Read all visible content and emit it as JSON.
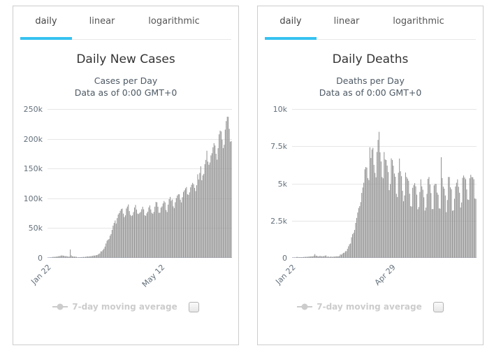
{
  "colors": {
    "accent": "#36c2f0",
    "bar": "#949494",
    "grid": "#e6e6e6",
    "axis_line": "#ccd6eb",
    "title": "#333333",
    "subtitle": "#4d5964",
    "tick_label": "#63707b",
    "tab_text": "#555555",
    "legend_disabled": "#cccccc",
    "panel_border": "#cccccc"
  },
  "charts": [
    {
      "tabs": [
        {
          "label": "daily",
          "active": true
        },
        {
          "label": "linear",
          "active": false
        },
        {
          "label": "logarithmic",
          "active": false
        }
      ],
      "title": "Daily New Cases",
      "subtitle_line1": "Cases per Day",
      "subtitle_line2": "Data as of 0:00 GMT+0",
      "chart_data": {
        "type": "bar",
        "title": "Daily New Cases",
        "subtitle": "Cases per Day — Data as of 0:00 GMT+0",
        "xlabel": "",
        "ylabel": "",
        "ylim": [
          0,
          250000
        ],
        "y_ticks": [
          "0",
          "50k",
          "100k",
          "150k",
          "200k",
          "250k"
        ],
        "x_start": "Jan 22",
        "x_ticks": [
          {
            "label": "Jan 22",
            "day_index": 0
          },
          {
            "label": "May 12",
            "day_index": 111
          }
        ],
        "legend_label": "7-day moving average",
        "legend_enabled": false,
        "grid": true,
        "values": [
          441,
          265,
          659,
          787,
          769,
          1778,
          1482,
          1755,
          2010,
          2127,
          2603,
          2836,
          3239,
          3929,
          3915,
          3721,
          3403,
          2680,
          3019,
          2560,
          2022,
          2110,
          14108,
          4156,
          2538,
          2225,
          2096,
          1998,
          1872,
          648,
          1036,
          896,
          1209,
          1235,
          1387,
          1587,
          1466,
          1788,
          2191,
          2414,
          2202,
          2609,
          2740,
          2960,
          3349,
          3950,
          3795,
          4291,
          4635,
          5281,
          6688,
          7506,
          10913,
          10961,
          13249,
          15406,
          18964,
          24097,
          28764,
          30382,
          31791,
          37193,
          39937,
          46997,
          54204,
          58669,
          62767,
          57671,
          66786,
          72790,
          75113,
          79018,
          81989,
          82708,
          74271,
          68368,
          71420,
          82891,
          86178,
          89657,
          78529,
          72207,
          70226,
          71463,
          76906,
          84590,
          88926,
          81121,
          74394,
          73724,
          75541,
          77129,
          81577,
          85853,
          81497,
          71651,
          70581,
          74826,
          77536,
          84771,
          88099,
          81398,
          75650,
          74113,
          77161,
          85963,
          93983,
          93337,
          85931,
          75745,
          75940,
          84400,
          86374,
          91434,
          95503,
          93081,
          80393,
          76965,
          89454,
          98566,
          102399,
          95917,
          97852,
          86556,
          83657,
          93352,
          100326,
          104752,
          106918,
          106829,
          97630,
          93186,
          101864,
          110750,
          113408,
          116766,
          118947,
          106842,
          105809,
          110021,
          118487,
          122707,
          125871,
          123632,
          117446,
          112095,
          122047,
          140344,
          131659,
          142557,
          153796,
          130327,
          138505,
          141109,
          157297,
          164527,
          179908,
          161630,
          156368,
          160236,
          172015,
          175723,
          185736,
          192612,
          188773,
          174858,
          164905,
          184204,
          207456,
          213742,
          212326,
          198461,
          184380,
          189929,
          215395,
          229782,
          237074,
          236908,
          216621,
          195148,
          196048
        ]
      }
    },
    {
      "tabs": [
        {
          "label": "daily",
          "active": true
        },
        {
          "label": "linear",
          "active": false
        },
        {
          "label": "logarithmic",
          "active": false
        }
      ],
      "title": "Daily Deaths",
      "subtitle_line1": "Deaths per Day",
      "subtitle_line2": "Data as of 0:00 GMT+0",
      "chart_data": {
        "type": "bar",
        "title": "Daily Deaths",
        "subtitle": "Deaths per Day — Data as of 0:00 GMT+0",
        "xlabel": "",
        "ylabel": "",
        "ylim": [
          0,
          10000
        ],
        "y_ticks": [
          "0",
          "2.5k",
          "5k",
          "7.5k",
          "10k"
        ],
        "x_start": "Jan 22",
        "x_ticks": [
          {
            "label": "Jan 22",
            "day_index": 0
          },
          {
            "label": "Apr 29",
            "day_index": 98
          }
        ],
        "legend_label": "7-day moving average",
        "legend_enabled": false,
        "grid": true,
        "values": [
          17,
          18,
          26,
          16,
          56,
          65,
          38,
          43,
          46,
          45,
          46,
          57,
          65,
          66,
          72,
          73,
          86,
          89,
          97,
          108,
          97,
          146,
          254,
          143,
          142,
          105,
          98,
          136,
          116,
          99,
          118,
          109,
          150,
          160,
          67,
          108,
          63,
          75,
          95,
          58,
          87,
          81,
          93,
          97,
          105,
          100,
          123,
          230,
          208,
          276,
          335,
          347,
          446,
          451,
          606,
          780,
          917,
          968,
          1381,
          1591,
          1684,
          1875,
          2351,
          2684,
          3046,
          3349,
          3479,
          3744,
          4362,
          4728,
          5046,
          5949,
          6101,
          6064,
          5359,
          5227,
          7430,
          6708,
          7279,
          7395,
          6249,
          5712,
          5411,
          7116,
          7928,
          8469,
          7095,
          6475,
          5434,
          5344,
          7109,
          6611,
          6573,
          6198,
          5761,
          4549,
          4963,
          6684,
          6577,
          6193,
          5665,
          5449,
          4304,
          4087,
          5721,
          6672,
          5816,
          5487,
          4505,
          3805,
          4194,
          5734,
          5437,
          5322,
          5180,
          4306,
          3474,
          3446,
          4709,
          4890,
          5019,
          4806,
          4246,
          3264,
          3415,
          4428,
          5279,
          4803,
          4578,
          4069,
          3176,
          3380,
          4303,
          5311,
          5434,
          4929,
          4354,
          3275,
          3281,
          4871,
          4977,
          4966,
          4385,
          4242,
          3327,
          3306,
          6760,
          5365,
          4785,
          4648,
          4189,
          3069,
          3885,
          5433,
          5431,
          4737,
          4608,
          3168,
          3190,
          3971,
          4796,
          5047,
          5275,
          4775,
          4375,
          3383,
          3721,
          5380,
          5533,
          5396,
          5283,
          4597,
          3924,
          3894,
          5348,
          5580,
          5428,
          5412,
          5282,
          3992,
          3965
        ]
      }
    }
  ]
}
